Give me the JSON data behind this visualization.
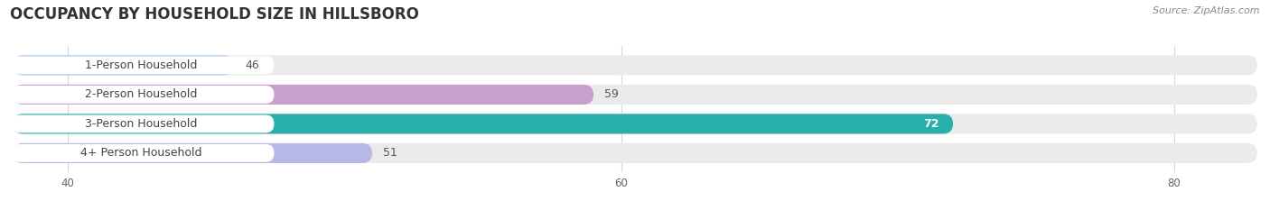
{
  "title": "OCCUPANCY BY HOUSEHOLD SIZE IN HILLSBORO",
  "source": "Source: ZipAtlas.com",
  "categories": [
    "1-Person Household",
    "2-Person Household",
    "3-Person Household",
    "4+ Person Household"
  ],
  "values": [
    46,
    59,
    72,
    51
  ],
  "bar_colors": [
    "#a8c8e8",
    "#c8a0cc",
    "#29b0aa",
    "#b8b8e8"
  ],
  "value_inside": [
    false,
    false,
    true,
    false
  ],
  "xlim_min": 38,
  "xlim_max": 83,
  "xticks": [
    40,
    60,
    80
  ],
  "title_fontsize": 12,
  "source_fontsize": 8,
  "label_fontsize": 9,
  "value_fontsize": 9,
  "background_color": "#ffffff",
  "bar_bg_color": "#ebebeb",
  "grid_color": "#d8d8d8",
  "bar_height": 0.68,
  "bar_gap": 0.18
}
